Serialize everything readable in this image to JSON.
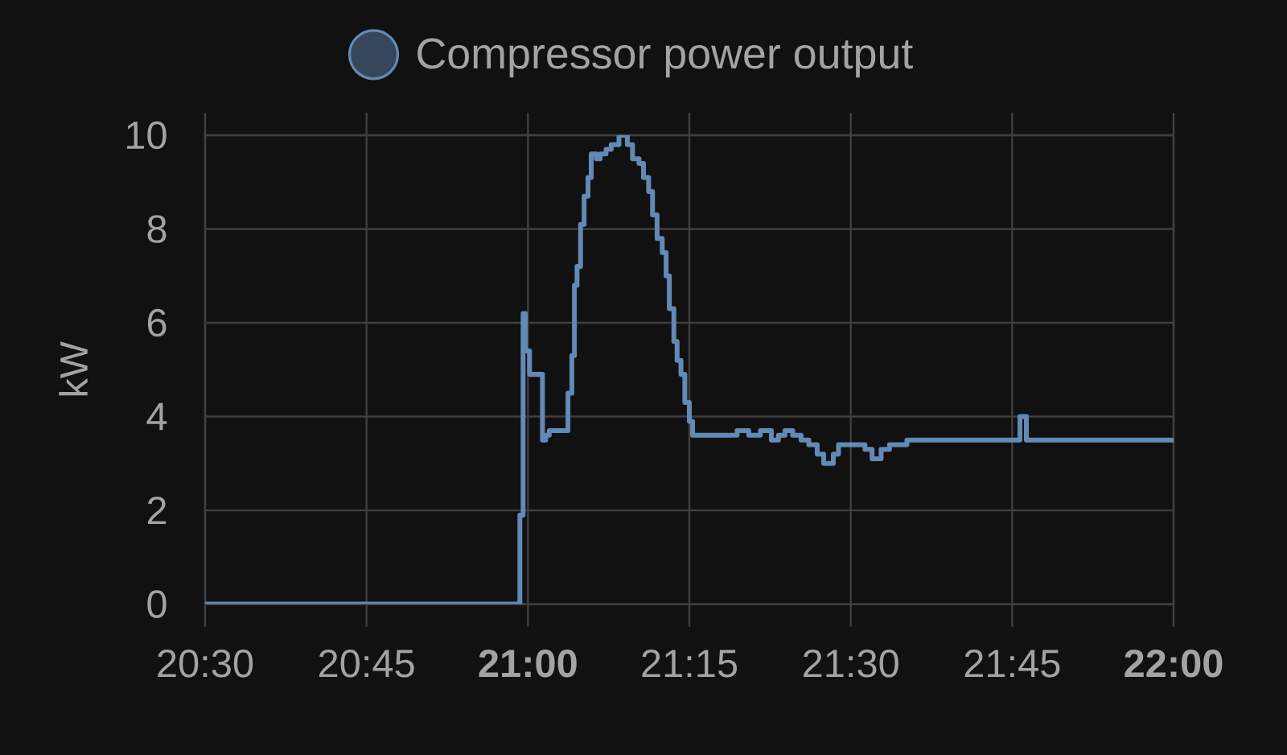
{
  "chart_data": {
    "type": "step",
    "series": [
      {
        "name": "Compressor power output",
        "color": "#6389b5",
        "x": [
          20.5,
          20.9875,
          20.9925,
          20.996,
          21.0025,
          21.0225,
          21.0275,
          21.033,
          21.062,
          21.068,
          21.072,
          21.076,
          21.0815,
          21.087,
          21.093,
          21.098,
          21.106,
          21.112,
          21.121,
          21.129,
          21.141,
          21.154,
          21.162,
          21.172,
          21.179,
          21.187,
          21.193,
          21.2,
          21.208,
          21.214,
          21.219,
          21.226,
          21.231,
          21.237,
          21.243,
          21.25,
          21.255,
          21.324,
          21.342,
          21.36,
          21.377,
          21.388,
          21.398,
          21.41,
          21.423,
          21.435,
          21.448,
          21.458,
          21.473,
          21.481,
          21.522,
          21.533,
          21.547,
          21.56,
          21.587,
          21.762,
          21.772,
          22.0
        ],
        "values": [
          0,
          1.9,
          6.2,
          5.4,
          4.9,
          3.5,
          3.6,
          3.7,
          4.5,
          5.3,
          6.8,
          7.2,
          8.1,
          8.7,
          9.1,
          9.6,
          9.5,
          9.6,
          9.7,
          9.8,
          10,
          9.8,
          9.5,
          9.4,
          9.1,
          8.8,
          8.3,
          7.8,
          7.5,
          7.0,
          6.3,
          5.6,
          5.2,
          4.9,
          4.3,
          3.9,
          3.6,
          3.7,
          3.6,
          3.7,
          3.5,
          3.6,
          3.7,
          3.6,
          3.5,
          3.4,
          3.2,
          3.0,
          3.2,
          3.4,
          3.3,
          3.1,
          3.3,
          3.4,
          3.5,
          4.0,
          3.5,
          3.5
        ]
      }
    ],
    "ylabel": "kW",
    "xlim": [
      20.5,
      22.0
    ],
    "ylim": [
      0,
      10
    ],
    "xticks": [
      {
        "value": 20.5,
        "label": "20:30"
      },
      {
        "value": 20.75,
        "label": "20:45"
      },
      {
        "value": 21.0,
        "label": "**21:00**"
      },
      {
        "value": 21.25,
        "label": "21:15"
      },
      {
        "value": 21.5,
        "label": "21:30"
      },
      {
        "value": 21.75,
        "label": "21:45"
      },
      {
        "value": 22.0,
        "label": "**22:00**"
      }
    ],
    "yticks": [
      0,
      2,
      4,
      6,
      8,
      10
    ],
    "grid": true,
    "legend": "top"
  }
}
